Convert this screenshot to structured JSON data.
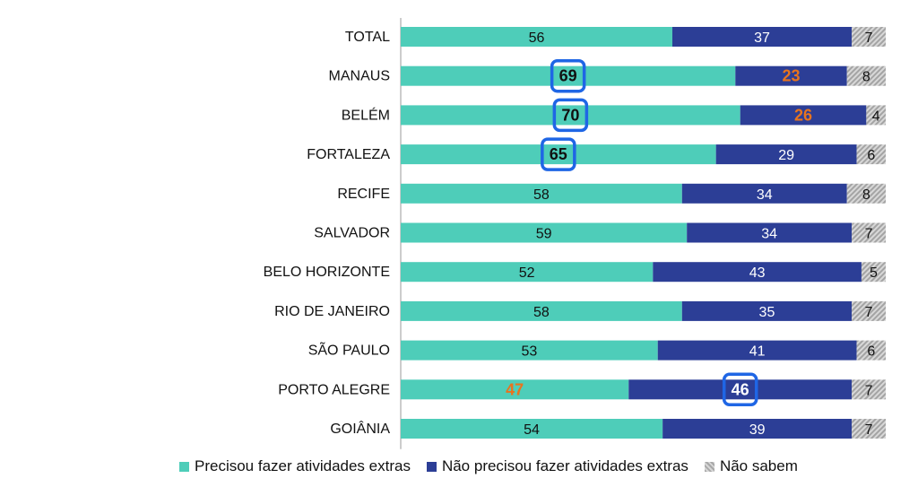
{
  "chart_data": {
    "type": "bar",
    "orientation": "horizontal",
    "stacked": true,
    "categories": [
      "TOTAL",
      "MANAUS",
      "BELÉM",
      "FORTALEZA",
      "RECIFE",
      "SALVADOR",
      "BELO HORIZONTE",
      "RIO DE JANEIRO",
      "SÃO PAULO",
      "PORTO ALEGRE",
      "GOIÂNIA"
    ],
    "series": [
      {
        "name": "Precisou fazer atividades extras",
        "color": "#4ecdb9",
        "values": [
          56,
          69,
          70,
          65,
          58,
          59,
          52,
          58,
          53,
          47,
          54
        ]
      },
      {
        "name": "Não precisou fazer atividades extras",
        "color": "#2c3e96",
        "values": [
          37,
          23,
          26,
          29,
          34,
          34,
          43,
          35,
          41,
          46,
          39
        ]
      },
      {
        "name": "Não sabem",
        "color": "#c0c0c0",
        "values": [
          7,
          8,
          4,
          6,
          8,
          7,
          5,
          7,
          6,
          7,
          7
        ]
      }
    ],
    "xlim": [
      0,
      100
    ],
    "legend_position": "bottom",
    "highlights": [
      {
        "series": 0,
        "index": 1,
        "style": "boxed"
      },
      {
        "series": 0,
        "index": 2,
        "style": "boxed"
      },
      {
        "series": 0,
        "index": 3,
        "style": "boxed"
      },
      {
        "series": 1,
        "index": 9,
        "style": "boxed"
      },
      {
        "series": 1,
        "index": 1,
        "style": "orange"
      },
      {
        "series": 1,
        "index": 2,
        "style": "orange"
      },
      {
        "series": 0,
        "index": 9,
        "style": "orange"
      }
    ],
    "colors": {
      "default_label_dark": "#111111",
      "default_label_light": "#ffffff",
      "highlight_text": "#e8741e",
      "highlight_box": "#1f66e5"
    }
  }
}
